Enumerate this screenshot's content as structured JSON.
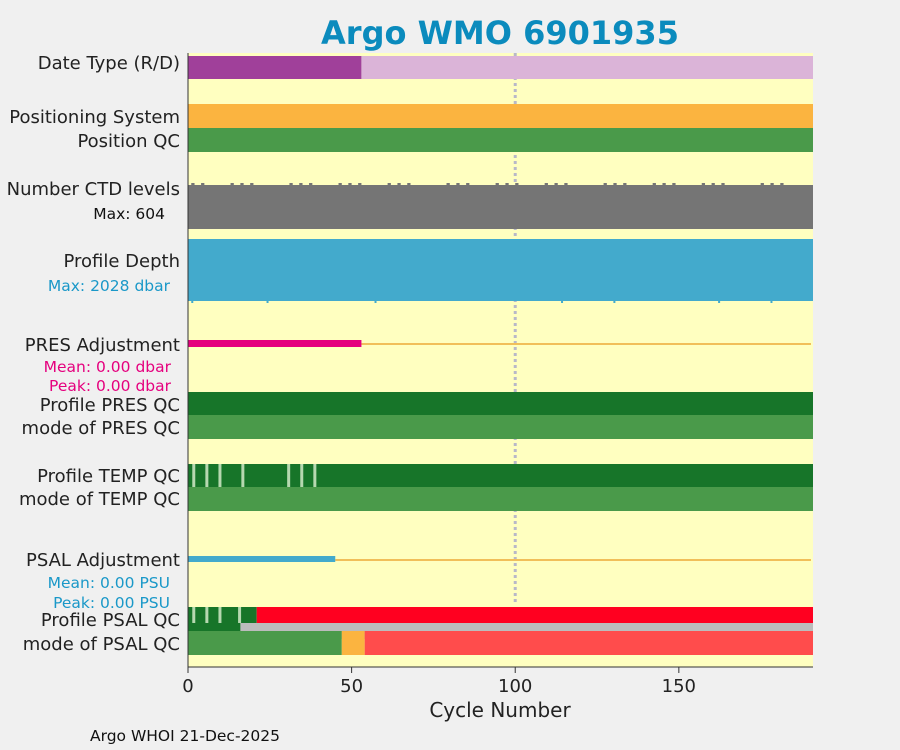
{
  "chart_data": {
    "type": "timeline",
    "title": "Argo WMO 6901935",
    "xlabel": "Cycle Number",
    "xlim": [
      0,
      191
    ],
    "xticks": [
      "0",
      "50",
      "100",
      "150"
    ],
    "reference_line_cycle": 100,
    "footer": "Argo WHOI 21-Dec-2025",
    "colors": {
      "title": "#0b8bbd",
      "plot_bg": "#ffffc0",
      "delayed": "#a0409a",
      "realtime": "#dbb4d8",
      "position_system": "#fbb440",
      "good": "#4a9a4a",
      "dark_good": "#177529",
      "light_good": "#b6d8b0",
      "ctd": "#757575",
      "depth": "#43aacc",
      "pres_adj": "#e5007e",
      "psal_adj": "#43aacc",
      "adj_line": "#f1bf5a",
      "qc_red": "#ff0020",
      "qc_grey": "#bcbcbc",
      "mode_orange": "#fbb440",
      "mode_red": "#ff4c4c",
      "psal_sub": "#1a98c8"
    },
    "rows": {
      "date_type": {
        "label": "Date Type (R/D)",
        "segments": [
          [
            0,
            53,
            "delayed"
          ],
          [
            53,
            191,
            "realtime"
          ]
        ]
      },
      "positioning_system": {
        "label": "Positioning System",
        "segments": [
          [
            0,
            191,
            "position_system"
          ]
        ]
      },
      "position_qc": {
        "label": "Position QC",
        "segments": [
          [
            0,
            191,
            "good"
          ]
        ]
      },
      "ctd_levels": {
        "label": "Number CTD levels",
        "max_label": "Max: 604",
        "max_value": 604
      },
      "profile_depth": {
        "label": "Profile Depth",
        "max_label": "Max: 2028 dbar",
        "max_value": 2028
      },
      "pres_adjustment": {
        "label": "PRES Adjustment",
        "mean_label": "Mean: 0.00 dbar",
        "peak_label": "Peak: 0.00 dbar",
        "delayed_until": 53
      },
      "profile_pres_qc": {
        "label": "Profile PRES QC",
        "segments": [
          [
            0,
            191,
            "dark_good"
          ]
        ]
      },
      "mode_pres_qc": {
        "label": "mode of PRES QC",
        "segments": [
          [
            0,
            191,
            "good"
          ]
        ]
      },
      "profile_temp_qc": {
        "label": "Profile TEMP QC",
        "segments": [
          [
            0,
            191,
            "dark_good"
          ]
        ],
        "light_cycles": [
          1,
          5,
          9,
          16,
          30,
          34,
          38
        ]
      },
      "mode_temp_qc": {
        "label": "mode of TEMP QC",
        "segments": [
          [
            0,
            191,
            "good"
          ]
        ]
      },
      "psal_adjustment": {
        "label": "PSAL Adjustment",
        "mean_label": "Mean: 0.00 PSU",
        "peak_label": "Peak: 0.00 PSU",
        "delayed_until": 45
      },
      "profile_psal_qc": {
        "label": "Profile PSAL QC",
        "segments": [
          [
            0,
            21,
            "dark_good"
          ],
          [
            21,
            191,
            "qc_red"
          ]
        ],
        "light_cycles": [
          1,
          5,
          9,
          15
        ],
        "grey_from": 16
      },
      "mode_psal_qc": {
        "label": "mode of PSAL QC",
        "segments": [
          [
            0,
            47,
            "good"
          ],
          [
            47,
            54,
            "mode_orange"
          ],
          [
            54,
            191,
            "mode_red"
          ]
        ]
      }
    }
  }
}
